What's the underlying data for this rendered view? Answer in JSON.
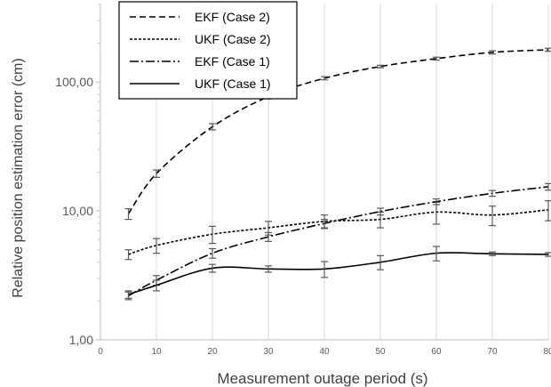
{
  "chart_data": {
    "type": "line",
    "title": "",
    "xlabel": "Measurement outage period (s)",
    "ylabel": "Relative position estimation error (cm)",
    "x_scale": "linear",
    "y_scale": "log",
    "xlim": [
      0,
      80
    ],
    "ylim": [
      1,
      400
    ],
    "x_ticks": [
      "0",
      "10",
      "20",
      "30",
      "40",
      "50",
      "60",
      "70",
      "80"
    ],
    "y_ticks": [
      "1,00",
      "10,00",
      "100,00"
    ],
    "grid": "vertical",
    "legend_position": "top-left",
    "x": [
      5,
      10,
      20,
      30,
      40,
      50,
      60,
      70,
      80
    ],
    "series": [
      {
        "name": "EKF (Case 2)",
        "line_style": "dashed",
        "color": "#000000",
        "values": [
          9.5,
          19.5,
          45,
          77,
          107,
          132,
          152,
          170,
          178
        ],
        "error": [
          0.9,
          1.3,
          2.5,
          3,
          3,
          3,
          4,
          5,
          5
        ]
      },
      {
        "name": "UKF (Case 2)",
        "line_style": "dotted",
        "color": "#000000",
        "values": [
          4.6,
          5.4,
          6.6,
          7.4,
          8.3,
          8.6,
          9.8,
          9.3,
          10.2
        ],
        "error": [
          0.4,
          0.7,
          1.0,
          0.9,
          1.0,
          1.2,
          1.9,
          1.6,
          1.8
        ]
      },
      {
        "name": "EKF (Case 1)",
        "line_style": "dash-dot",
        "color": "#000000",
        "values": [
          2.2,
          2.9,
          4.7,
          6.3,
          8.0,
          9.9,
          11.8,
          13.7,
          15.4
        ],
        "error": [
          0.15,
          0.25,
          0.4,
          0.5,
          0.6,
          0.6,
          0.6,
          0.7,
          0.9
        ]
      },
      {
        "name": "UKF (Case 1)",
        "line_style": "solid",
        "color": "#000000",
        "values": [
          2.25,
          2.65,
          3.6,
          3.55,
          3.55,
          4.0,
          4.7,
          4.65,
          4.6
        ],
        "error": [
          0.15,
          0.25,
          0.25,
          0.2,
          0.5,
          0.5,
          0.6,
          0.15,
          0.15
        ]
      }
    ]
  }
}
